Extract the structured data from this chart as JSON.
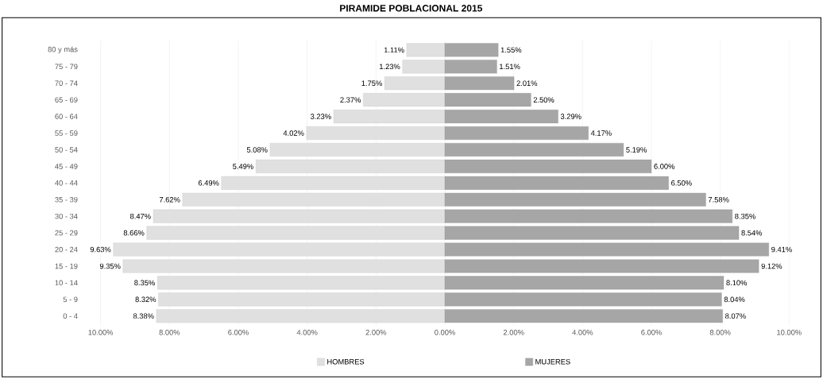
{
  "chart_data": {
    "type": "bar",
    "orientation": "horizontal",
    "title": "PIRAMIDE POBLACIONAL 2015",
    "categories": [
      "80 y más",
      "75 - 79",
      "70 - 74",
      "65 - 69",
      "60 - 64",
      "55 - 59",
      "50 - 54",
      "45 - 49",
      "40 - 44",
      "35 - 39",
      "30 - 34",
      "25 - 29",
      "20 - 24",
      "15 - 19",
      "10 - 14",
      "5 - 9",
      "0 - 4"
    ],
    "series": [
      {
        "name": "HOMBRES",
        "color": "#e0e0e0",
        "base": [
          -1.11,
          -1.23,
          -1.75,
          -2.37,
          -3.23,
          -4.02,
          -5.08,
          -5.49,
          -6.49,
          -7.62,
          -8.47,
          -8.66,
          -9.63,
          -9.35,
          -8.35,
          -8.32,
          -8.38
        ],
        "values": [
          1.11,
          1.23,
          1.75,
          2.37,
          3.23,
          4.02,
          5.08,
          5.49,
          6.49,
          7.62,
          8.47,
          8.66,
          9.63,
          9.35,
          8.35,
          8.32,
          8.38
        ],
        "value_labels": [
          "1.11%",
          "1.23%",
          "1.75%",
          "2.37%",
          "3.23%",
          "4.02%",
          "5.08%",
          "5.49%",
          "6.49%",
          "7.62%",
          "8.47%",
          "8.66%",
          "9.63%",
          "9.35%",
          "8.35%",
          "8.32%",
          "8.38%"
        ]
      },
      {
        "name": "MUJERES",
        "color": "#a6a6a6",
        "values": [
          1.55,
          1.51,
          2.01,
          2.5,
          3.29,
          4.17,
          5.19,
          6.0,
          6.5,
          7.58,
          8.35,
          8.54,
          9.41,
          9.12,
          8.1,
          8.04,
          8.07
        ],
        "value_labels": [
          "1.55%",
          "1.51%",
          "2.01%",
          "2.50%",
          "3.29%",
          "4.17%",
          "5.19%",
          "6.00%",
          "6.50%",
          "7.58%",
          "8.35%",
          "8.54%",
          "9.41%",
          "9.12%",
          "8.10%",
          "8.04%",
          "8.07%"
        ]
      }
    ],
    "xlim": [
      -10,
      10
    ],
    "xticks": [
      {
        "value": -10,
        "label": "10.00%"
      },
      {
        "value": -8,
        "label": "8.00%"
      },
      {
        "value": -6,
        "label": "6.00%"
      },
      {
        "value": -4,
        "label": "4.00%"
      },
      {
        "value": -2,
        "label": "2.00%"
      },
      {
        "value": 0,
        "label": "0.00%"
      },
      {
        "value": 2,
        "label": "2.00%"
      },
      {
        "value": 4,
        "label": "4.00%"
      },
      {
        "value": 6,
        "label": "6.00%"
      },
      {
        "value": 8,
        "label": "8.00%"
      },
      {
        "value": 10,
        "label": "10.00%"
      }
    ],
    "grid": "x",
    "legend": "bottom"
  }
}
